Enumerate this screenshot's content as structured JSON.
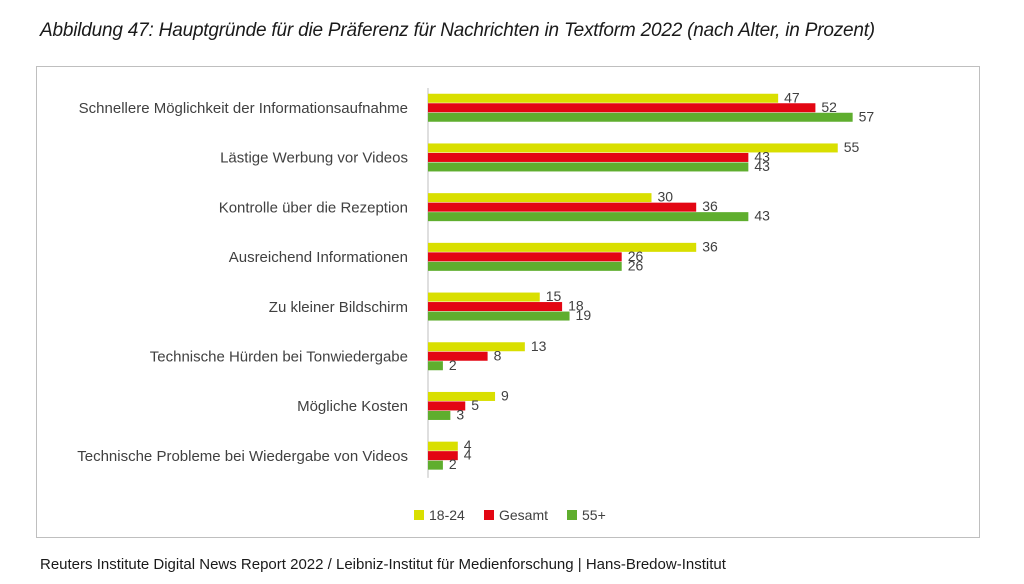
{
  "title": "Abbildung 47: Hauptgründe für die Präferenz für Nachrichten in Textform 2022 (nach Alter, in Prozent)",
  "source": "Reuters Institute Digital News Report 2022 / Leibniz-Institut für Medienforschung | Hans-Bredow-Institut",
  "chart_data": {
    "type": "bar",
    "orientation": "horizontal",
    "categories": [
      "Schnellere Möglichkeit der Informationsaufnahme",
      "Lästige Werbung vor Videos",
      "Kontrolle über die Rezeption",
      "Ausreichend Informationen",
      "Zu kleiner Bildschirm",
      "Technische Hürden bei Tonwiedergabe",
      "Mögliche Kosten",
      "Technische Probleme bei Wiedergabe von Videos"
    ],
    "series": [
      {
        "name": "18-24",
        "color": "#d9df00",
        "values": [
          47,
          55,
          30,
          36,
          15,
          13,
          9,
          4
        ]
      },
      {
        "name": "Gesamt",
        "color": "#e30613",
        "values": [
          52,
          43,
          36,
          26,
          18,
          8,
          5,
          4
        ]
      },
      {
        "name": "55+",
        "color": "#5fae2e",
        "values": [
          57,
          43,
          43,
          26,
          19,
          2,
          3,
          2
        ]
      }
    ],
    "xlim": [
      0,
      60
    ],
    "grid": false,
    "legend_position": "bottom"
  }
}
